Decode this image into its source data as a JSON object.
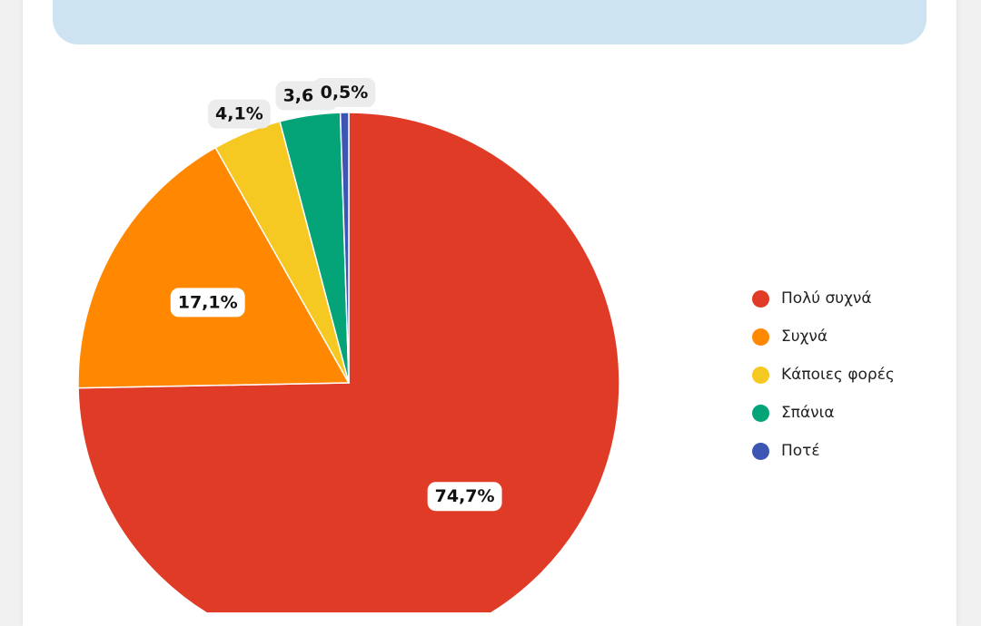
{
  "chart_data": {
    "type": "pie",
    "title": "",
    "categories": [
      "Πολύ συχνά",
      "Συχνά",
      "Κάποιες φορές",
      "Σπάνια",
      "Ποτέ"
    ],
    "values": [
      74.7,
      17.1,
      4.1,
      3.6,
      0.5
    ],
    "labels": [
      "74,7%",
      "17,1%",
      "4,1%",
      "3,6%",
      "0,5%"
    ],
    "colors": [
      "#e03b27",
      "#ff8800",
      "#f6c822",
      "#04a478",
      "#3d55b3"
    ],
    "start": "12 o'clock",
    "direction": "clockwise",
    "legend_position": "right"
  }
}
